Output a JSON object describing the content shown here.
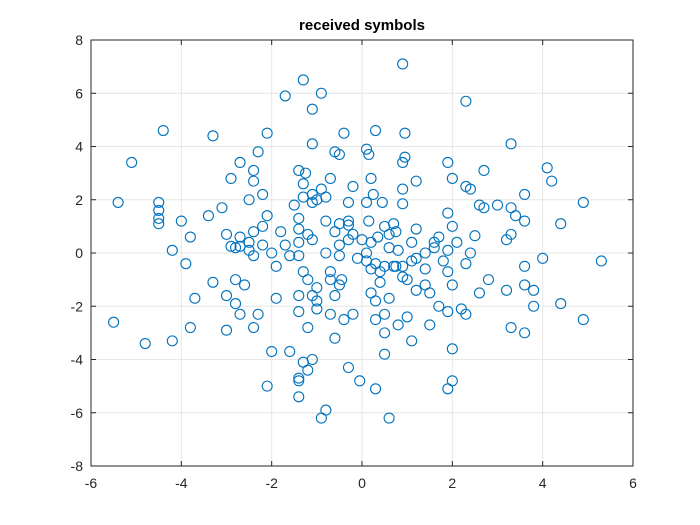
{
  "chart_data": {
    "type": "scatter",
    "title": "received symbols",
    "xlabel": "",
    "ylabel": "",
    "xlim": [
      -6,
      6
    ],
    "ylim": [
      -8,
      8
    ],
    "xticks": [
      "-6",
      "-4",
      "-2",
      "0",
      "2",
      "4",
      "6"
    ],
    "yticks": [
      "8",
      "6",
      "4",
      "2",
      "0",
      "-2",
      "-4",
      "-6",
      "-8"
    ],
    "grid": true,
    "marker": "circle",
    "marker_color": "#0072BD",
    "series": [
      {
        "points": [
          [
            0.9,
            7.1
          ],
          [
            -1.3,
            6.5
          ],
          [
            -0.9,
            6.0
          ],
          [
            -1.7,
            5.9
          ],
          [
            2.3,
            5.7
          ],
          [
            -1.1,
            5.4
          ],
          [
            -4.4,
            4.6
          ],
          [
            -3.3,
            4.4
          ],
          [
            -2.1,
            4.5
          ],
          [
            -0.4,
            4.5
          ],
          [
            0.3,
            4.6
          ],
          [
            0.95,
            4.5
          ],
          [
            -1.1,
            4.1
          ],
          [
            3.3,
            4.1
          ],
          [
            -2.3,
            3.8
          ],
          [
            -0.6,
            3.8
          ],
          [
            -0.5,
            3.7
          ],
          [
            0.1,
            3.9
          ],
          [
            0.15,
            3.7
          ],
          [
            0.95,
            3.6
          ],
          [
            0.9,
            3.4
          ],
          [
            -5.1,
            3.4
          ],
          [
            -2.7,
            3.4
          ],
          [
            -2.4,
            3.1
          ],
          [
            -1.4,
            3.1
          ],
          [
            -1.25,
            3.0
          ],
          [
            1.9,
            3.4
          ],
          [
            2.7,
            3.1
          ],
          [
            4.1,
            3.2
          ],
          [
            4.2,
            2.7
          ],
          [
            -2.9,
            2.8
          ],
          [
            -2.4,
            2.7
          ],
          [
            -1.3,
            2.6
          ],
          [
            -0.7,
            2.8
          ],
          [
            0.2,
            2.8
          ],
          [
            1.2,
            2.7
          ],
          [
            2.0,
            2.8
          ],
          [
            2.3,
            2.5
          ],
          [
            2.4,
            2.4
          ],
          [
            3.6,
            2.2
          ],
          [
            -2.2,
            2.2
          ],
          [
            -1.3,
            2.1
          ],
          [
            -1.1,
            2.2
          ],
          [
            -0.9,
            2.4
          ],
          [
            -0.8,
            2.1
          ],
          [
            -0.2,
            2.5
          ],
          [
            0.25,
            2.2
          ],
          [
            0.9,
            2.4
          ],
          [
            -5.4,
            1.9
          ],
          [
            -4.5,
            1.9
          ],
          [
            -4.5,
            1.6
          ],
          [
            -4.5,
            1.3
          ],
          [
            -4.5,
            1.1
          ],
          [
            -3.1,
            1.7
          ],
          [
            -2.5,
            2.0
          ],
          [
            -1.5,
            1.8
          ],
          [
            -1.1,
            1.9
          ],
          [
            -1.0,
            2.0
          ],
          [
            -0.3,
            1.9
          ],
          [
            0.1,
            1.9
          ],
          [
            0.45,
            1.9
          ],
          [
            0.9,
            1.85
          ],
          [
            1.9,
            1.5
          ],
          [
            2.6,
            1.8
          ],
          [
            2.7,
            1.7
          ],
          [
            3.0,
            1.8
          ],
          [
            3.3,
            1.7
          ],
          [
            3.4,
            1.4
          ],
          [
            3.6,
            1.2
          ],
          [
            4.9,
            1.9
          ],
          [
            -4.0,
            1.2
          ],
          [
            -3.4,
            1.4
          ],
          [
            -2.1,
            1.4
          ],
          [
            -1.4,
            1.3
          ],
          [
            -0.8,
            1.2
          ],
          [
            -0.5,
            1.1
          ],
          [
            -0.3,
            1.2
          ],
          [
            -0.3,
            1.05
          ],
          [
            0.15,
            1.2
          ],
          [
            0.5,
            1.0
          ],
          [
            0.7,
            1.1
          ],
          [
            1.2,
            0.9
          ],
          [
            2.0,
            1.0
          ],
          [
            2.5,
            0.65
          ],
          [
            4.4,
            1.1
          ],
          [
            -3.8,
            0.6
          ],
          [
            -3.0,
            0.7
          ],
          [
            -2.7,
            0.6
          ],
          [
            -2.4,
            0.8
          ],
          [
            -1.8,
            0.8
          ],
          [
            -1.4,
            0.9
          ],
          [
            -1.2,
            0.7
          ],
          [
            -0.6,
            0.8
          ],
          [
            -0.2,
            0.7
          ],
          [
            0.35,
            0.6
          ],
          [
            0.6,
            0.7
          ],
          [
            0.75,
            0.8
          ],
          [
            1.1,
            0.4
          ],
          [
            1.6,
            0.4
          ],
          [
            1.7,
            0.6
          ],
          [
            2.1,
            0.4
          ],
          [
            3.2,
            0.5
          ],
          [
            3.3,
            0.7
          ],
          [
            -2.9,
            0.25
          ],
          [
            -2.7,
            0.25
          ],
          [
            -2.5,
            0.4
          ],
          [
            -2.2,
            0.3
          ],
          [
            -1.7,
            0.3
          ],
          [
            -1.4,
            0.4
          ],
          [
            -1.1,
            0.5
          ],
          [
            -0.5,
            0.3
          ],
          [
            -0.3,
            0.5
          ],
          [
            0.0,
            0.5
          ],
          [
            0.2,
            0.4
          ],
          [
            0.6,
            0.2
          ],
          [
            0.8,
            0.1
          ],
          [
            1.6,
            0.2
          ],
          [
            1.9,
            0.1
          ],
          [
            2.4,
            0.0
          ],
          [
            -4.2,
            0.1
          ],
          [
            -3.9,
            -0.4
          ],
          [
            -2.8,
            0.2
          ],
          [
            -2.5,
            0.1
          ],
          [
            -2.0,
            0.0
          ],
          [
            -1.6,
            -0.1
          ],
          [
            -1.4,
            -0.1
          ],
          [
            -0.8,
            0.0
          ],
          [
            -0.5,
            -0.1
          ],
          [
            -0.1,
            -0.2
          ],
          [
            0.1,
            -0.3
          ],
          [
            0.3,
            -0.4
          ],
          [
            0.5,
            -0.5
          ],
          [
            0.7,
            -0.5
          ],
          [
            0.9,
            -0.5
          ],
          [
            1.1,
            -0.3
          ],
          [
            1.4,
            -0.6
          ],
          [
            1.8,
            -0.3
          ],
          [
            2.3,
            -0.4
          ],
          [
            3.6,
            -0.5
          ],
          [
            4.0,
            -0.2
          ],
          [
            5.3,
            -0.3
          ],
          [
            -2.4,
            -0.1
          ],
          [
            -1.3,
            -0.7
          ],
          [
            -0.7,
            -0.7
          ],
          [
            0.2,
            -0.6
          ],
          [
            0.4,
            -0.7
          ],
          [
            0.75,
            -0.5
          ],
          [
            1.0,
            -1.0
          ],
          [
            1.2,
            -0.2
          ],
          [
            1.9,
            -0.7
          ],
          [
            -2.8,
            -1.0
          ],
          [
            -2.6,
            -1.2
          ],
          [
            -1.2,
            -1.0
          ],
          [
            -0.7,
            -1.0
          ],
          [
            -0.45,
            -1.0
          ],
          [
            0.4,
            -1.1
          ],
          [
            0.9,
            -0.9
          ],
          [
            1.4,
            -1.2
          ],
          [
            2.0,
            -1.2
          ],
          [
            2.6,
            -1.5
          ],
          [
            3.6,
            -1.2
          ],
          [
            3.8,
            -1.4
          ],
          [
            -5.5,
            -2.6
          ],
          [
            -3.7,
            -1.7
          ],
          [
            -3.0,
            -1.6
          ],
          [
            -2.8,
            -1.9
          ],
          [
            -1.9,
            -1.7
          ],
          [
            -1.4,
            -1.6
          ],
          [
            -1.0,
            -1.3
          ],
          [
            -1.1,
            -1.6
          ],
          [
            -0.6,
            -1.6
          ],
          [
            -0.5,
            -1.2
          ],
          [
            0.2,
            -1.5
          ],
          [
            0.6,
            -1.7
          ],
          [
            1.2,
            -1.4
          ],
          [
            1.5,
            -1.5
          ],
          [
            1.7,
            -2.0
          ],
          [
            1.9,
            -2.2
          ],
          [
            2.2,
            -2.1
          ],
          [
            3.2,
            -1.4
          ],
          [
            4.4,
            -1.9
          ],
          [
            -3.8,
            -2.8
          ],
          [
            -3.0,
            -2.9
          ],
          [
            -2.7,
            -2.3
          ],
          [
            -2.3,
            -2.3
          ],
          [
            -2.4,
            -2.8
          ],
          [
            -1.4,
            -2.2
          ],
          [
            -1.0,
            -2.1
          ],
          [
            -0.7,
            -2.3
          ],
          [
            -0.4,
            -2.5
          ],
          [
            0.3,
            -2.5
          ],
          [
            0.5,
            -2.3
          ],
          [
            1.0,
            -2.4
          ],
          [
            1.5,
            -2.7
          ],
          [
            2.3,
            -2.3
          ],
          [
            3.3,
            -2.8
          ],
          [
            3.6,
            -3.0
          ],
          [
            4.9,
            -2.5
          ],
          [
            -4.8,
            -3.4
          ],
          [
            -4.2,
            -3.3
          ],
          [
            -2.0,
            -3.7
          ],
          [
            -1.6,
            -3.7
          ],
          [
            -0.6,
            -3.2
          ],
          [
            0.5,
            -3.0
          ],
          [
            0.8,
            -2.7
          ],
          [
            1.1,
            -3.3
          ],
          [
            -1.1,
            -4.0
          ],
          [
            -0.3,
            -4.3
          ],
          [
            0.5,
            -3.8
          ],
          [
            2.0,
            -3.6
          ],
          [
            -1.3,
            -4.1
          ],
          [
            -1.2,
            -4.4
          ],
          [
            -2.1,
            -5.0
          ],
          [
            -1.4,
            -4.7
          ],
          [
            -1.4,
            -4.8
          ],
          [
            -0.05,
            -4.8
          ],
          [
            0.3,
            -5.1
          ],
          [
            2.0,
            -4.8
          ],
          [
            1.9,
            -5.1
          ],
          [
            -1.4,
            -5.4
          ],
          [
            -0.8,
            -5.9
          ],
          [
            -0.9,
            -6.2
          ],
          [
            0.6,
            -6.2
          ],
          [
            -1.0,
            -1.8
          ],
          [
            -1.2,
            -2.8
          ],
          [
            -0.2,
            -2.3
          ],
          [
            0.3,
            -1.8
          ],
          [
            3.8,
            -2.0
          ],
          [
            -2.2,
            1.0
          ],
          [
            2.8,
            -1.0
          ],
          [
            1.4,
            0.0
          ],
          [
            -1.9,
            -0.5
          ],
          [
            0.1,
            0.0
          ],
          [
            -3.3,
            -1.1
          ]
        ]
      }
    ]
  }
}
